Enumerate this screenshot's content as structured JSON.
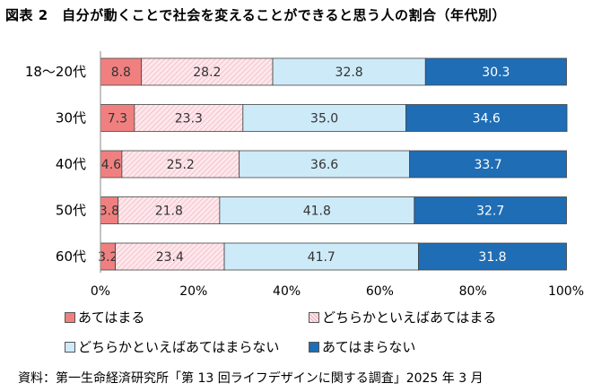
{
  "title": "図表 2　自分が動くことで社会を変えることができると思う人の割合（年代別）",
  "source": "資料：第一生命経済研究所「第 13 回ライフデザインに関する調査」2025 年 3 月",
  "chart_data": {
    "type": "bar",
    "orientation": "horizontal",
    "stacked": true,
    "percent_axis": true,
    "categories": [
      "18～20代",
      "30代",
      "40代",
      "50代",
      "60代"
    ],
    "series": [
      {
        "name": "あてはまる",
        "color": "#f08080",
        "pattern": "none",
        "values": [
          8.8,
          7.3,
          4.6,
          3.8,
          3.2
        ]
      },
      {
        "name": "どちらかといえばあてはまる",
        "color": "#fde8ec",
        "pattern": "hatch",
        "values": [
          28.2,
          23.3,
          25.2,
          21.8,
          23.4
        ]
      },
      {
        "name": "どちらかといえばあてはまらない",
        "color": "#cdeaf8",
        "pattern": "none",
        "values": [
          32.8,
          35.0,
          36.6,
          41.8,
          41.7
        ]
      },
      {
        "name": "あてはまらない",
        "color": "#1f6db5",
        "pattern": "none",
        "values": [
          30.3,
          34.6,
          33.7,
          32.7,
          31.8
        ]
      }
    ],
    "xlim": [
      0,
      100
    ],
    "xticks": [
      "0%",
      "20%",
      "40%",
      "60%",
      "80%",
      "100%"
    ],
    "grid": false,
    "legend_position": "bottom"
  }
}
